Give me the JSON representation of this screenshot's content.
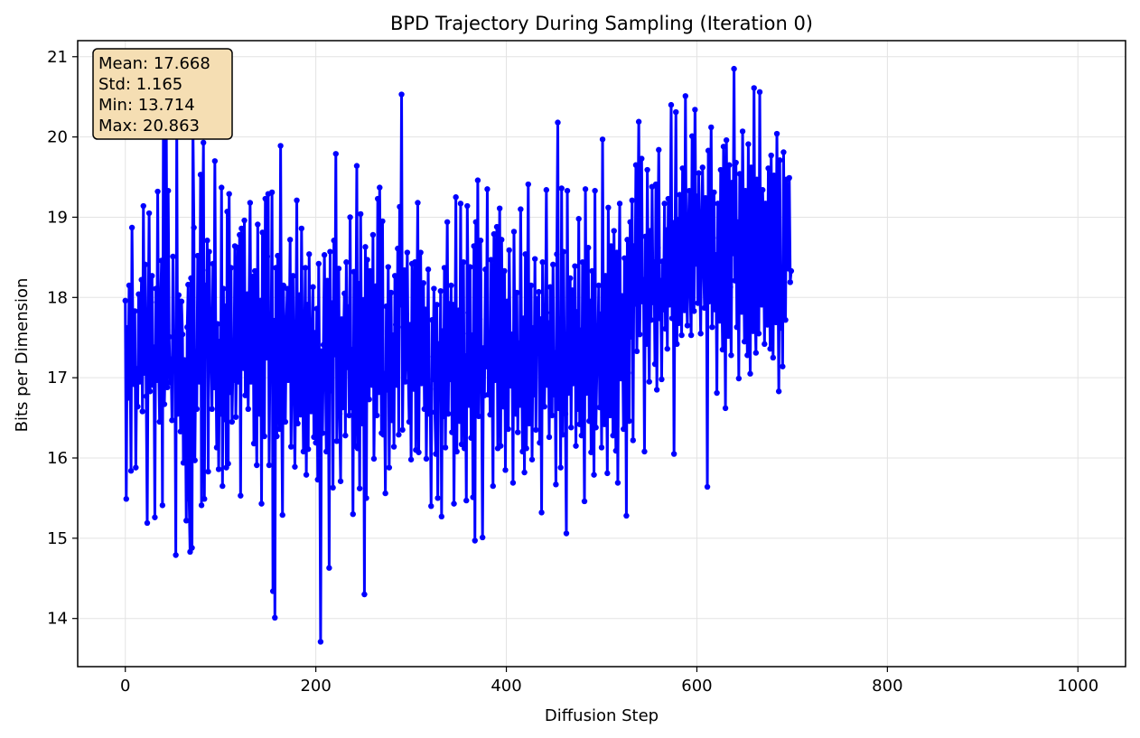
{
  "chart_data": {
    "type": "line",
    "title": "BPD Trajectory During Sampling (Iteration 0)",
    "xlabel": "Diffusion Step",
    "ylabel": "Bits per Dimension",
    "xlim": [
      -50,
      1050
    ],
    "ylim": [
      13.4,
      21.2
    ],
    "xticks": [
      0,
      200,
      400,
      600,
      800,
      1000
    ],
    "yticks": [
      14,
      15,
      16,
      17,
      18,
      19,
      20,
      21
    ],
    "grid": true,
    "series": [
      {
        "color": "#0000ff",
        "marker": "circle",
        "x_start": 0,
        "x_step": 1,
        "values": [
          17.96,
          15.49,
          17.62,
          16.75,
          18.15,
          17.31,
          15.84,
          18.87,
          17.45,
          16.92,
          17.83,
          15.88,
          17.11,
          16.64,
          18.04,
          16.95,
          17.52,
          18.22,
          16.58,
          19.14,
          17.06,
          18.41,
          16.77,
          15.19,
          17.61,
          19.05,
          16.83,
          17.94,
          18.27,
          16.91,
          17.38,
          15.26,
          18.11,
          16.97,
          19.32,
          17.22,
          16.45,
          17.86,
          18.46,
          15.41,
          20.31,
          16.67,
          17.29,
          20.17,
          16.88,
          19.33,
          17.51,
          16.94,
          17.23,
          16.47,
          18.51,
          17.13,
          17.42,
          14.79,
          20.13,
          16.55,
          18.03,
          17.61,
          16.33,
          17.95,
          17.54,
          15.94,
          17.22,
          16.81,
          15.22,
          17.63,
          18.16,
          15.49,
          14.83,
          18.24,
          14.88,
          20.14,
          18.87,
          15.97,
          17.32,
          16.61,
          18.52,
          17.14,
          16.95,
          19.53,
          15.41,
          18.34,
          19.93,
          15.49,
          18.15,
          17.37,
          18.71,
          15.83,
          18.57,
          17.76,
          17.25,
          16.61,
          18.42,
          16.88,
          19.7,
          17.26,
          16.13,
          17.67,
          15.86,
          17.45,
          16.55,
          19.37,
          15.65,
          18.11,
          16.48,
          17.89,
          15.88,
          19.07,
          15.93,
          19.29,
          16.82,
          18.37,
          16.45,
          17.14,
          16.97,
          18.64,
          16.51,
          17.33,
          18.62,
          16.95,
          18.78,
          15.53,
          18.86,
          17.83,
          17.12,
          18.96,
          16.78,
          17.42,
          18.04,
          16.61,
          17.98,
          19.18,
          16.95,
          17.57,
          18.26,
          16.18,
          18.33,
          17.43,
          15.91,
          18.91,
          17.02,
          16.55,
          17.96,
          15.43,
          18.81,
          17.63,
          16.27,
          19.23,
          17.25,
          18.51,
          19.29,
          15.91,
          17.53,
          17.21,
          19.31,
          14.34,
          17.71,
          14.01,
          18.37,
          16.27,
          18.52,
          17.26,
          16.36,
          19.89,
          16.88,
          15.29,
          18.15,
          17.31,
          16.45,
          17.63,
          18.11,
          16.97,
          17.33,
          18.72,
          16.14,
          17.55,
          18.27,
          16.88,
          15.89,
          17.22,
          19.21,
          16.43,
          17.63,
          18.03,
          16.54,
          18.86,
          17.23,
          16.08,
          17.38,
          18.37,
          15.79,
          17.91,
          16.11,
          18.54,
          17.23,
          16.58,
          17.41,
          18.13,
          16.26,
          17.56,
          16.19,
          17.86,
          15.73,
          18.42,
          16.71,
          13.71,
          17.33,
          16.31,
          17.41,
          18.53,
          17.19,
          16.08,
          18.21,
          17.64,
          14.63,
          18.57,
          16.84,
          17.93,
          15.63,
          18.71,
          17.29,
          19.79,
          16.21,
          17.54,
          18.36,
          16.55,
          15.71,
          17.73,
          16.63,
          17.38,
          18.05,
          16.28,
          18.44,
          17.13,
          17.88,
          16.53,
          19.0,
          16.63,
          17.35,
          15.3,
          18.32,
          16.15,
          17.43,
          19.64,
          16.12,
          18.17,
          15.62,
          19.04,
          17.24,
          16.43,
          17.97,
          14.3,
          18.63,
          15.5,
          18.47,
          17.37,
          16.73,
          18.33,
          17.62,
          16.91,
          18.78,
          15.99,
          17.24,
          18.14,
          16.53,
          19.23,
          16.82,
          19.37,
          17.65,
          16.31,
          18.95,
          16.29,
          17.05,
          15.56,
          17.89,
          16.85,
          18.38,
          15.88,
          17.24,
          18.06,
          16.47,
          17.53,
          16.14,
          18.27,
          17.66,
          16.91,
          18.61,
          16.29,
          19.13,
          17.91,
          20.53,
          16.35,
          17.63,
          18.34,
          16.95,
          17.79,
          18.56,
          17.11,
          16.45,
          17.66,
          15.98,
          18.42,
          17.25,
          16.86,
          18.44,
          16.1,
          17.67,
          19.18,
          16.07,
          17.77,
          18.56,
          16.93,
          17.38,
          18.18,
          16.61,
          17.85,
          15.99,
          17.26,
          18.35,
          16.55,
          16.86,
          15.4,
          17.72,
          16.98,
          18.11,
          16.57,
          16.05,
          17.91,
          15.5,
          17.42,
          16.74,
          18.08,
          15.27,
          17.58,
          16.52,
          18.37,
          16.13,
          17.45,
          18.94,
          16.55,
          17.92,
          16.98,
          18.15,
          16.32,
          17.91,
          15.43,
          17.22,
          19.25,
          16.08,
          17.64,
          17.84,
          16.46,
          19.17,
          16.17,
          17.55,
          18.44,
          16.12,
          17.27,
          15.47,
          19.14,
          17.81,
          16.66,
          18.38,
          16.25,
          17.53,
          15.51,
          18.64,
          14.97,
          18.94,
          16.58,
          19.46,
          16.52,
          17.73,
          18.71,
          16.98,
          15.01,
          17.37,
          16.78,
          18.35,
          17.14,
          19.35,
          16.79,
          17.53,
          16.54,
          18.47,
          17.09,
          15.65,
          18.79,
          16.97,
          17.51,
          18.88,
          16.12,
          17.34,
          19.11,
          16.15,
          18.72,
          17.43,
          16.64,
          18.33,
          15.85,
          17.88,
          17.95,
          16.36,
          18.59,
          17.46,
          16.9,
          17.54,
          15.69,
          18.82,
          17.24,
          16.55,
          18.06,
          16.32,
          17.43,
          16.66,
          19.1,
          17.28,
          16.08,
          17.74,
          15.82,
          18.54,
          16.12,
          17.72,
          19.41,
          16.43,
          17.33,
          18.15,
          15.98,
          17.62,
          16.79,
          18.48,
          16.35,
          17.98,
          17.34,
          18.07,
          16.19,
          17.73,
          15.32,
          18.44,
          17.18,
          16.64,
          17.42,
          19.34,
          16.91,
          17.68,
          16.26,
          18.13,
          17.81,
          16.53,
          18.41,
          16.79,
          17.31,
          15.67,
          18.54,
          20.18,
          16.62,
          17.48,
          15.88,
          19.36,
          16.29,
          18.57,
          17.21,
          16.55,
          15.06,
          19.33,
          16.81,
          17.54,
          18.24,
          16.38,
          18.09,
          16.93,
          17.76,
          18.39,
          16.15,
          17.82,
          16.61,
          18.98,
          16.42,
          17.59,
          16.28,
          18.44,
          17.15,
          15.46,
          19.35,
          16.81,
          17.23,
          18.62,
          16.46,
          17.95,
          16.07,
          18.33,
          17.49,
          15.79,
          19.33,
          16.38,
          17.11,
          17.34,
          18.15,
          16.63,
          17.79,
          16.13,
          19.97,
          17.05,
          16.42,
          18.27,
          17.35,
          15.81,
          19.12,
          17.62,
          16.53,
          18.64,
          17.77,
          16.28,
          18.83,
          17.43,
          16.09,
          18.56,
          15.69,
          17.82,
          19.17,
          16.99,
          18.02,
          17.45,
          16.36,
          18.49,
          17.84,
          15.28,
          18.72,
          17.06,
          16.46,
          18.94,
          17.51,
          19.21,
          16.22,
          18.64,
          17.92,
          19.65,
          17.33,
          18.72,
          20.19,
          17.54,
          18.51,
          19.73,
          17.95,
          18.22,
          16.08,
          18.76,
          17.42,
          19.59,
          18.07,
          16.95,
          18.83,
          17.72,
          19.38,
          17.94,
          18.44,
          17.17,
          19.41,
          16.85,
          18.62,
          19.84,
          17.74,
          18.21,
          16.98,
          18.45,
          17.85,
          19.17,
          17.61,
          18.84,
          17.36,
          19.23,
          17.91,
          18.53,
          20.4,
          17.74,
          18.93,
          16.05,
          18.61,
          20.31,
          17.42,
          18.97,
          17.68,
          19.28,
          18.14,
          17.53,
          19.61,
          18.36,
          17.84,
          20.51,
          18.21,
          17.65,
          18.82,
          19.33,
          18.08,
          17.53,
          20.01,
          18.95,
          17.83,
          20.34,
          18.42,
          19.26,
          17.93,
          19.55,
          18.25,
          17.55,
          18.96,
          19.62,
          18.43,
          17.87,
          19.24,
          18.61,
          15.64,
          19.83,
          17.95,
          18.72,
          20.12,
          17.63,
          18.74,
          19.31,
          17.85,
          18.53,
          16.81,
          19.17,
          18.48,
          17.71,
          19.59,
          18.24,
          17.35,
          19.88,
          18.49,
          16.62,
          19.96,
          18.25,
          17.52,
          19.65,
          18.13,
          17.28,
          19.43,
          18.55,
          20.85,
          18.21,
          19.68,
          17.63,
          18.94,
          16.99,
          19.54,
          18.32,
          17.82,
          20.07,
          18.71,
          17.45,
          19.33,
          18.52,
          17.28,
          19.91,
          18.46,
          17.05,
          19.62,
          18.28,
          17.58,
          20.61,
          18.05,
          17.31,
          19.47,
          18.68,
          17.55,
          20.56,
          18.22,
          17.91,
          19.34,
          18.79,
          17.42,
          19.17,
          18.58,
          17.66,
          19.61,
          18.34,
          17.36,
          19.77,
          18.44,
          17.25,
          19.52,
          18.75,
          17.69,
          20.04,
          18.51,
          16.83,
          19.71,
          17.62,
          18.29,
          17.14,
          19.81,
          18.35,
          17.72,
          19.47,
          18.91,
          18.36,
          19.49,
          18.19,
          18.33
        ]
      }
    ],
    "stats_box": {
      "lines": [
        "Mean: 17.668",
        "Std: 1.165",
        "Min: 13.714",
        "Max: 20.863"
      ],
      "placement": "top-left",
      "facecolor": "#f5deb3"
    }
  }
}
